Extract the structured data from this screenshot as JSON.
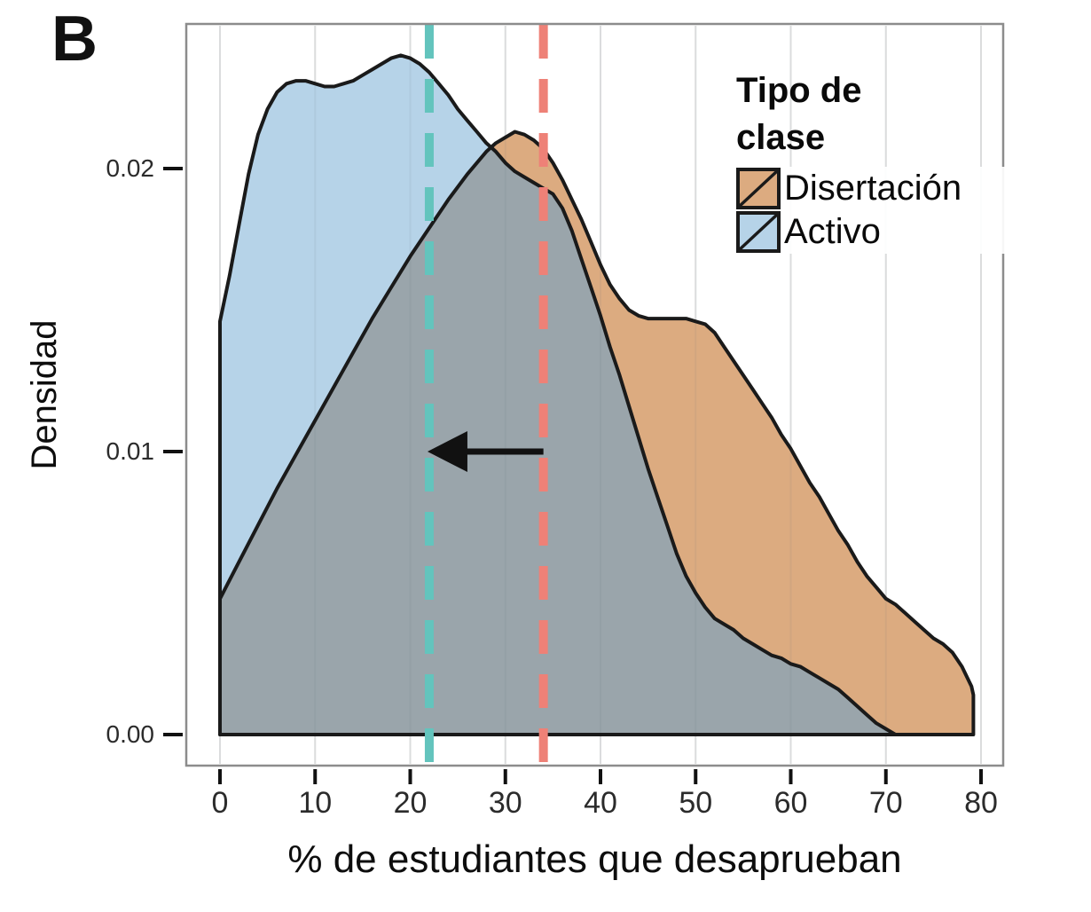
{
  "panel_label": "B",
  "legend": {
    "title": "Tipo de clase",
    "items": [
      {
        "label": "Disertación",
        "color": "#dcab80"
      },
      {
        "label": "Activo",
        "color": "#b6d3e8"
      }
    ]
  },
  "axes": {
    "y": {
      "label": "Densidad",
      "tick_labels": [
        "0.00",
        "0.01",
        "0.02"
      ],
      "tick_values": [
        0,
        0.01,
        0.02
      ]
    },
    "x": {
      "label": "% de estudiantes que desaprueban",
      "tick_labels": [
        "0",
        "10",
        "20",
        "30",
        "40",
        "50",
        "60",
        "70",
        "80"
      ],
      "tick_values": [
        0,
        10,
        20,
        30,
        40,
        50,
        60,
        70,
        80
      ]
    }
  },
  "chart_data": {
    "type": "area",
    "title": "",
    "xlabel": "% de estudiantes que desaprueban",
    "ylabel": "Densidad",
    "xlim": [
      -3.5,
      82
    ],
    "ylim": [
      0,
      0.0255
    ],
    "grid": "vertical light gray lines every 10 units",
    "legend_position": "inside top-right",
    "overlap_color": "#9aa5ab",
    "outline_color": "#1a1a1a",
    "series": [
      {
        "name": "Disertación",
        "color": "#dcab80",
        "points": [
          [
            0,
            0.0048
          ],
          [
            2,
            0.0061
          ],
          [
            4,
            0.0074
          ],
          [
            6,
            0.0087
          ],
          [
            8,
            0.0099
          ],
          [
            10,
            0.0111
          ],
          [
            12,
            0.0123
          ],
          [
            14,
            0.0135
          ],
          [
            16,
            0.0147
          ],
          [
            18,
            0.0158
          ],
          [
            20,
            0.0169
          ],
          [
            22,
            0.0179
          ],
          [
            24,
            0.0189
          ],
          [
            26,
            0.0198
          ],
          [
            28,
            0.0206
          ],
          [
            29,
            0.0209
          ],
          [
            30,
            0.0211
          ],
          [
            31,
            0.0213
          ],
          [
            32,
            0.0212
          ],
          [
            33,
            0.021
          ],
          [
            34,
            0.0207
          ],
          [
            35,
            0.0202
          ],
          [
            36,
            0.0196
          ],
          [
            37,
            0.0189
          ],
          [
            38,
            0.0182
          ],
          [
            39,
            0.0174
          ],
          [
            40,
            0.0166
          ],
          [
            41,
            0.0159
          ],
          [
            42,
            0.0154
          ],
          [
            43,
            0.015
          ],
          [
            44,
            0.0148
          ],
          [
            45,
            0.0147
          ],
          [
            46,
            0.0147
          ],
          [
            47,
            0.0147
          ],
          [
            48,
            0.0147
          ],
          [
            49,
            0.0147
          ],
          [
            50,
            0.0146
          ],
          [
            51,
            0.0145
          ],
          [
            52,
            0.0142
          ],
          [
            53,
            0.0137
          ],
          [
            54,
            0.0132
          ],
          [
            55,
            0.0127
          ],
          [
            56,
            0.0122
          ],
          [
            57,
            0.0117
          ],
          [
            58,
            0.0112
          ],
          [
            59,
            0.0106
          ],
          [
            60,
            0.0101
          ],
          [
            61,
            0.0095
          ],
          [
            62,
            0.0089
          ],
          [
            63,
            0.0084
          ],
          [
            64,
            0.0078
          ],
          [
            65,
            0.0072
          ],
          [
            66,
            0.0067
          ],
          [
            67,
            0.0061
          ],
          [
            68,
            0.0056
          ],
          [
            69,
            0.0052
          ],
          [
            70,
            0.0048
          ],
          [
            71,
            0.0046
          ],
          [
            72,
            0.0043
          ],
          [
            73,
            0.004
          ],
          [
            74,
            0.0037
          ],
          [
            75,
            0.0034
          ],
          [
            76,
            0.0032
          ],
          [
            77,
            0.0029
          ],
          [
            78,
            0.0024
          ],
          [
            79,
            0.0017
          ],
          [
            79.2,
            0.0014
          ]
        ]
      },
      {
        "name": "Activo",
        "color": "#b6d3e8",
        "points": [
          [
            0,
            0.0146
          ],
          [
            1,
            0.0162
          ],
          [
            2,
            0.018
          ],
          [
            3,
            0.0198
          ],
          [
            4,
            0.0212
          ],
          [
            5,
            0.0221
          ],
          [
            6,
            0.0227
          ],
          [
            7,
            0.023
          ],
          [
            8,
            0.0231
          ],
          [
            9,
            0.0231
          ],
          [
            10,
            0.023
          ],
          [
            11,
            0.0229
          ],
          [
            12,
            0.0229
          ],
          [
            13,
            0.023
          ],
          [
            14,
            0.0231
          ],
          [
            15,
            0.0233
          ],
          [
            16,
            0.0235
          ],
          [
            17,
            0.0237
          ],
          [
            18,
            0.0239
          ],
          [
            19,
            0.024
          ],
          [
            20,
            0.0239
          ],
          [
            21,
            0.0237
          ],
          [
            22,
            0.0234
          ],
          [
            23,
            0.023
          ],
          [
            24,
            0.0226
          ],
          [
            25,
            0.0221
          ],
          [
            26,
            0.0217
          ],
          [
            27,
            0.0213
          ],
          [
            28,
            0.0209
          ],
          [
            29,
            0.0206
          ],
          [
            30,
            0.0202
          ],
          [
            31,
            0.0199
          ],
          [
            32,
            0.0197
          ],
          [
            33,
            0.0195
          ],
          [
            34,
            0.0193
          ],
          [
            35,
            0.0191
          ],
          [
            36,
            0.0186
          ],
          [
            37,
            0.0178
          ],
          [
            38,
            0.0168
          ],
          [
            39,
            0.0158
          ],
          [
            40,
            0.0148
          ],
          [
            41,
            0.0137
          ],
          [
            42,
            0.0127
          ],
          [
            43,
            0.0116
          ],
          [
            44,
            0.0105
          ],
          [
            45,
            0.0094
          ],
          [
            46,
            0.0084
          ],
          [
            47,
            0.0074
          ],
          [
            48,
            0.0064
          ],
          [
            49,
            0.0056
          ],
          [
            50,
            0.005
          ],
          [
            51,
            0.0045
          ],
          [
            52,
            0.0041
          ],
          [
            53,
            0.0039
          ],
          [
            54,
            0.0037
          ],
          [
            55,
            0.0034
          ],
          [
            56,
            0.0032
          ],
          [
            57,
            0.003
          ],
          [
            58,
            0.0028
          ],
          [
            59,
            0.0027
          ],
          [
            60,
            0.0025
          ],
          [
            61,
            0.0024
          ],
          [
            62,
            0.0022
          ],
          [
            63,
            0.002
          ],
          [
            64,
            0.0018
          ],
          [
            65,
            0.0016
          ],
          [
            66,
            0.0013
          ],
          [
            67,
            0.001
          ],
          [
            68,
            0.0007
          ],
          [
            69,
            0.0004
          ],
          [
            70,
            0.0002
          ],
          [
            71,
            0.0
          ]
        ]
      }
    ],
    "mean_lines": [
      {
        "series": "Activo",
        "x": 22,
        "color": "#63c4bd",
        "style": "dashed"
      },
      {
        "series": "Disertación",
        "x": 34,
        "color": "#ee8177",
        "style": "dashed"
      }
    ],
    "annotation_arrow": {
      "from_x": 34,
      "to_x": 22,
      "y": 0.01,
      "color": "#111111",
      "direction": "left"
    }
  },
  "colors": {
    "gridline": "#e6e6e6",
    "panel_border": "#8c8c8c",
    "tick_mark": "#111111"
  }
}
